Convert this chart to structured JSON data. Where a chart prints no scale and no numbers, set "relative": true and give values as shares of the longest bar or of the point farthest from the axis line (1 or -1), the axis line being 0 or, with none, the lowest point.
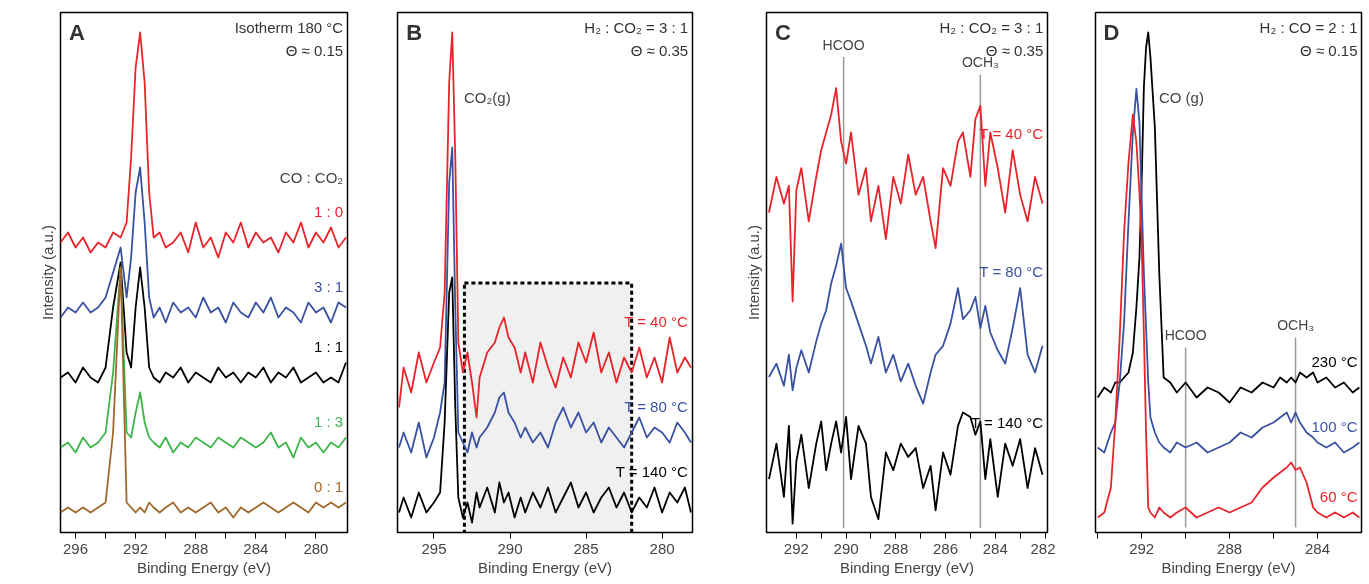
{
  "chart_data": [
    {
      "type": "line",
      "title": "A",
      "xlabel": "Binding Energy (eV)",
      "ylabel": "Intensity (a.u.)",
      "legend_title": "CO : CO₂",
      "relative": true,
      "line_style": "solid",
      "annotations": [
        "Isotherm 180 °C",
        "Θ ≈ 0.15"
      ],
      "xlim": [
        297,
        277.9
      ],
      "xticks": [
        296,
        {
          "value": 294,
          "label": null
        },
        292,
        {
          "value": 290,
          "label": null
        },
        288,
        {
          "value": 286,
          "label": null
        },
        284,
        {
          "value": 282,
          "label": null
        },
        280
      ],
      "x": [
        297,
        296.5,
        296,
        295.5,
        295,
        294.5,
        294,
        293.5,
        293,
        292.6,
        292.3,
        292,
        291.7,
        291.4,
        291.1,
        290.8,
        290.4,
        290,
        289.5,
        289,
        288.5,
        288,
        287.5,
        287,
        286.5,
        286,
        285.5,
        285,
        284.5,
        284,
        283.5,
        283,
        282.5,
        282,
        281.5,
        281,
        280.5,
        280,
        279.5,
        279,
        278.5,
        278
      ],
      "series": [
        {
          "name": "1 : 0",
          "color": "#e8242b",
          "values": [
            0.58,
            0.6,
            0.57,
            0.59,
            0.56,
            0.58,
            0.57,
            0.6,
            0.59,
            0.62,
            0.75,
            0.93,
            1.0,
            0.9,
            0.68,
            0.59,
            0.6,
            0.57,
            0.58,
            0.6,
            0.56,
            0.62,
            0.57,
            0.59,
            0.55,
            0.6,
            0.58,
            0.62,
            0.57,
            0.6,
            0.58,
            0.59,
            0.56,
            0.6,
            0.58,
            0.62,
            0.57,
            0.6,
            0.58,
            0.61,
            0.57,
            0.59
          ]
        },
        {
          "name": "3 : 1",
          "color": "#3a51a2",
          "values": [
            0.43,
            0.45,
            0.44,
            0.46,
            0.44,
            0.45,
            0.47,
            0.52,
            0.57,
            0.47,
            0.55,
            0.68,
            0.73,
            0.62,
            0.47,
            0.43,
            0.45,
            0.42,
            0.46,
            0.44,
            0.45,
            0.43,
            0.47,
            0.44,
            0.45,
            0.42,
            0.46,
            0.44,
            0.43,
            0.46,
            0.44,
            0.47,
            0.43,
            0.45,
            0.44,
            0.42,
            0.46,
            0.44,
            0.45,
            0.42,
            0.46,
            0.45
          ]
        },
        {
          "name": "1 : 1",
          "color": "#000000",
          "values": [
            0.31,
            0.32,
            0.3,
            0.33,
            0.31,
            0.3,
            0.33,
            0.45,
            0.54,
            0.36,
            0.33,
            0.45,
            0.53,
            0.45,
            0.33,
            0.31,
            0.3,
            0.32,
            0.31,
            0.33,
            0.3,
            0.32,
            0.31,
            0.3,
            0.33,
            0.31,
            0.32,
            0.3,
            0.32,
            0.31,
            0.33,
            0.3,
            0.32,
            0.31,
            0.33,
            0.3,
            0.31,
            0.32,
            0.3,
            0.31,
            0.3,
            0.34
          ]
        },
        {
          "name": "1 : 3",
          "color": "#3db54a",
          "values": [
            0.17,
            0.18,
            0.16,
            0.19,
            0.17,
            0.18,
            0.2,
            0.32,
            0.53,
            0.2,
            0.19,
            0.24,
            0.28,
            0.22,
            0.19,
            0.18,
            0.17,
            0.19,
            0.16,
            0.18,
            0.17,
            0.19,
            0.18,
            0.17,
            0.19,
            0.18,
            0.17,
            0.19,
            0.18,
            0.17,
            0.18,
            0.2,
            0.17,
            0.18,
            0.15,
            0.19,
            0.17,
            0.18,
            0.16,
            0.18,
            0.17,
            0.19
          ]
        },
        {
          "name": "0 : 1",
          "color": "#a0672a",
          "values": [
            0.04,
            0.05,
            0.04,
            0.05,
            0.04,
            0.05,
            0.06,
            0.2,
            0.53,
            0.06,
            0.05,
            0.04,
            0.05,
            0.04,
            0.06,
            0.05,
            0.04,
            0.05,
            0.06,
            0.04,
            0.05,
            0.04,
            0.05,
            0.06,
            0.04,
            0.05,
            0.03,
            0.05,
            0.04,
            0.05,
            0.06,
            0.05,
            0.04,
            0.05,
            0.06,
            0.05,
            0.04,
            0.06,
            0.05,
            0.06,
            0.05,
            0.06
          ]
        }
      ]
    },
    {
      "type": "line",
      "title": "B",
      "xlabel": "Binding Energy (eV)",
      "relative": true,
      "line_style": "solid",
      "annotations": [
        "H₂ : CO₂ = 3 : 1",
        "Θ ≈ 0.35",
        "CO₂(g)"
      ],
      "xlim": [
        297.4,
        278
      ],
      "xticks": [
        295,
        290,
        285,
        280
      ],
      "bands": [
        {
          "axis": "x",
          "from": 293,
          "to": 282,
          "color": "#000000"
        }
      ],
      "x": [
        297.3,
        297,
        296.5,
        296,
        295.5,
        295,
        294.6,
        294.3,
        294,
        293.8,
        293.6,
        293.4,
        293.1,
        292.8,
        292.5,
        292.2,
        292,
        291.5,
        291,
        290.7,
        290.4,
        290.1,
        289.7,
        289.3,
        289,
        288.5,
        288,
        287.5,
        287,
        286.5,
        286,
        285.5,
        285,
        284.5,
        284,
        283.5,
        283,
        282.5,
        282,
        281.5,
        281,
        280.5,
        280,
        279.5,
        279,
        278.5,
        278.1
      ],
      "series": [
        {
          "name": "T = 40 °C",
          "color": "#e8242b",
          "values": [
            0.25,
            0.33,
            0.28,
            0.36,
            0.3,
            0.34,
            0.37,
            0.48,
            0.9,
            1.0,
            0.75,
            0.38,
            0.32,
            0.36,
            0.3,
            0.23,
            0.31,
            0.36,
            0.38,
            0.41,
            0.43,
            0.39,
            0.37,
            0.32,
            0.36,
            0.3,
            0.38,
            0.33,
            0.29,
            0.35,
            0.31,
            0.38,
            0.34,
            0.4,
            0.32,
            0.36,
            0.3,
            0.35,
            0.32,
            0.37,
            0.31,
            0.35,
            0.3,
            0.39,
            0.32,
            0.35,
            0.33
          ]
        },
        {
          "name": "T = 80 °C",
          "color": "#3a51a2",
          "values": [
            0.17,
            0.2,
            0.16,
            0.22,
            0.15,
            0.19,
            0.24,
            0.3,
            0.7,
            0.77,
            0.45,
            0.2,
            0.18,
            0.16,
            0.2,
            0.17,
            0.19,
            0.21,
            0.24,
            0.27,
            0.28,
            0.24,
            0.22,
            0.19,
            0.21,
            0.18,
            0.2,
            0.17,
            0.22,
            0.25,
            0.21,
            0.24,
            0.2,
            0.22,
            0.18,
            0.21,
            0.19,
            0.17,
            0.2,
            0.23,
            0.19,
            0.21,
            0.2,
            0.18,
            0.22,
            0.2,
            0.18
          ]
        },
        {
          "name": "T = 140 °C",
          "color": "#000000",
          "values": [
            0.04,
            0.07,
            0.03,
            0.08,
            0.04,
            0.06,
            0.08,
            0.22,
            0.48,
            0.51,
            0.25,
            0.07,
            0.03,
            0.06,
            0.02,
            0.08,
            0.05,
            0.09,
            0.04,
            0.1,
            0.06,
            0.08,
            0.03,
            0.07,
            0.04,
            0.08,
            0.05,
            0.09,
            0.04,
            0.07,
            0.1,
            0.05,
            0.08,
            0.04,
            0.07,
            0.09,
            0.05,
            0.08,
            0.04,
            0.07,
            0.05,
            0.09,
            0.04,
            0.08,
            0.06,
            0.09,
            0.04
          ]
        }
      ]
    },
    {
      "type": "line",
      "title": "C",
      "xlabel": "Binding Energy (eV)",
      "ylabel": "Intensity (a.u.)",
      "relative": true,
      "line_style": "solid",
      "annotations": [
        "H₂ : CO₂ = 3 : 1",
        "Θ ≈ 0.35"
      ],
      "xlim": [
        293.2,
        281.9
      ],
      "xticks": [
        292,
        {
          "value": 291,
          "label": null
        },
        290,
        {
          "value": 289,
          "label": null
        },
        288,
        {
          "value": 287,
          "label": null
        },
        286,
        {
          "value": 285,
          "label": null
        },
        284,
        {
          "value": 283,
          "label": null
        },
        282
      ],
      "ref_lines": [
        {
          "axis": "x",
          "value": 290.1,
          "label": "HCOO",
          "color": "#999999"
        },
        {
          "axis": "x",
          "value": 284.6,
          "label": "OCH₃",
          "color": "#999999"
        }
      ],
      "x": [
        293.1,
        292.8,
        292.5,
        292.3,
        292.15,
        292,
        291.8,
        291.5,
        291.2,
        291,
        290.8,
        290.6,
        290.4,
        290.2,
        290,
        289.8,
        289.5,
        289.2,
        289,
        288.7,
        288.4,
        288.1,
        287.8,
        287.5,
        287.2,
        286.9,
        286.6,
        286.4,
        286.1,
        285.8,
        285.5,
        285.3,
        285,
        284.8,
        284.6,
        284.4,
        284.2,
        283.9,
        283.6,
        283.3,
        283,
        282.7,
        282.4,
        282.1
      ],
      "series": [
        {
          "name": "T = 40 °C",
          "color": "#e8242b",
          "values": [
            0.72,
            0.8,
            0.74,
            0.78,
            0.52,
            0.77,
            0.82,
            0.7,
            0.8,
            0.86,
            0.9,
            0.94,
            1.0,
            0.88,
            0.83,
            0.9,
            0.76,
            0.82,
            0.7,
            0.78,
            0.66,
            0.8,
            0.74,
            0.85,
            0.76,
            0.8,
            0.7,
            0.64,
            0.82,
            0.78,
            0.88,
            0.9,
            0.8,
            0.93,
            0.96,
            0.78,
            0.9,
            0.82,
            0.72,
            0.86,
            0.76,
            0.7,
            0.8,
            0.74
          ]
        },
        {
          "name": "T = 80 °C",
          "color": "#3a51a2",
          "values": [
            0.35,
            0.38,
            0.33,
            0.4,
            0.32,
            0.37,
            0.41,
            0.36,
            0.43,
            0.47,
            0.5,
            0.56,
            0.6,
            0.65,
            0.55,
            0.52,
            0.47,
            0.42,
            0.38,
            0.44,
            0.36,
            0.4,
            0.34,
            0.38,
            0.33,
            0.29,
            0.36,
            0.4,
            0.42,
            0.47,
            0.55,
            0.48,
            0.5,
            0.53,
            0.46,
            0.51,
            0.45,
            0.41,
            0.38,
            0.46,
            0.55,
            0.4,
            0.36,
            0.42
          ]
        },
        {
          "name": "T = 140 °C",
          "color": "#000000",
          "values": [
            0.12,
            0.2,
            0.08,
            0.24,
            0.02,
            0.16,
            0.22,
            0.1,
            0.2,
            0.25,
            0.14,
            0.2,
            0.25,
            0.18,
            0.26,
            0.12,
            0.24,
            0.2,
            0.08,
            0.03,
            0.18,
            0.14,
            0.2,
            0.17,
            0.19,
            0.1,
            0.15,
            0.05,
            0.18,
            0.13,
            0.24,
            0.27,
            0.26,
            0.22,
            0.25,
            0.12,
            0.21,
            0.08,
            0.2,
            0.15,
            0.21,
            0.1,
            0.19,
            0.13
          ]
        }
      ]
    },
    {
      "type": "line",
      "title": "D",
      "xlabel": "Binding Energy (eV)",
      "relative": true,
      "line_style": "solid",
      "annotations": [
        "H₂ : CO = 2 : 1",
        "Θ ≈ 0.15",
        "CO (g)"
      ],
      "xlim": [
        294.1,
        282
      ],
      "xticks": [
        {
          "value": 294,
          "label": null
        },
        292,
        {
          "value": 290,
          "label": null
        },
        288,
        {
          "value": 286,
          "label": null
        },
        284
      ],
      "ref_lines": [
        {
          "axis": "x",
          "value": 290.0,
          "label": "HCOO",
          "color": "#999999"
        },
        {
          "axis": "x",
          "value": 285.0,
          "label": "OCH₃",
          "color": "#999999"
        }
      ],
      "x": [
        294,
        293.7,
        293.4,
        293.2,
        293,
        292.8,
        292.6,
        292.4,
        292.24,
        292.1,
        292,
        291.9,
        291.8,
        291.7,
        291.6,
        291.4,
        291.2,
        291,
        290.7,
        290.4,
        290,
        289.5,
        289,
        288.5,
        288,
        287.5,
        287,
        286.5,
        286,
        285.7,
        285.4,
        285.2,
        285,
        284.8,
        284.5,
        284.2,
        284,
        283.6,
        283.2,
        282.8,
        282.4,
        282.1
      ],
      "series": [
        {
          "name": "230 °C",
          "color": "#000000",
          "values": [
            0.27,
            0.29,
            0.28,
            0.3,
            0.3,
            0.31,
            0.32,
            0.36,
            0.45,
            0.55,
            0.7,
            0.89,
            0.97,
            1.0,
            0.95,
            0.81,
            0.52,
            0.31,
            0.3,
            0.28,
            0.3,
            0.27,
            0.29,
            0.28,
            0.26,
            0.29,
            0.28,
            0.3,
            0.29,
            0.31,
            0.3,
            0.31,
            0.3,
            0.32,
            0.31,
            0.32,
            0.3,
            0.31,
            0.29,
            0.3,
            0.28,
            0.29
          ]
        },
        {
          "name": "100 °C",
          "color": "#3a51a2",
          "values": [
            0.17,
            0.16,
            0.2,
            0.22,
            0.3,
            0.42,
            0.62,
            0.8,
            0.887,
            0.82,
            0.667,
            0.52,
            0.41,
            0.3,
            0.23,
            0.2,
            0.18,
            0.17,
            0.16,
            0.18,
            0.17,
            0.18,
            0.16,
            0.17,
            0.18,
            0.2,
            0.19,
            0.21,
            0.22,
            0.23,
            0.24,
            0.22,
            0.24,
            0.22,
            0.2,
            0.19,
            0.18,
            0.17,
            0.18,
            0.16,
            0.17,
            0.18
          ]
        },
        {
          "name": "60 °C",
          "color": "#e8242b",
          "values": [
            0.03,
            0.04,
            0.09,
            0.22,
            0.39,
            0.6,
            0.74,
            0.836,
            0.78,
            0.68,
            0.58,
            0.4,
            0.2,
            0.05,
            0.04,
            0.03,
            0.05,
            0.04,
            0.03,
            0.04,
            0.05,
            0.03,
            0.04,
            0.05,
            0.04,
            0.05,
            0.06,
            0.09,
            0.11,
            0.12,
            0.13,
            0.14,
            0.125,
            0.13,
            0.1,
            0.05,
            0.04,
            0.03,
            0.04,
            0.03,
            0.04,
            0.03
          ]
        }
      ]
    }
  ]
}
